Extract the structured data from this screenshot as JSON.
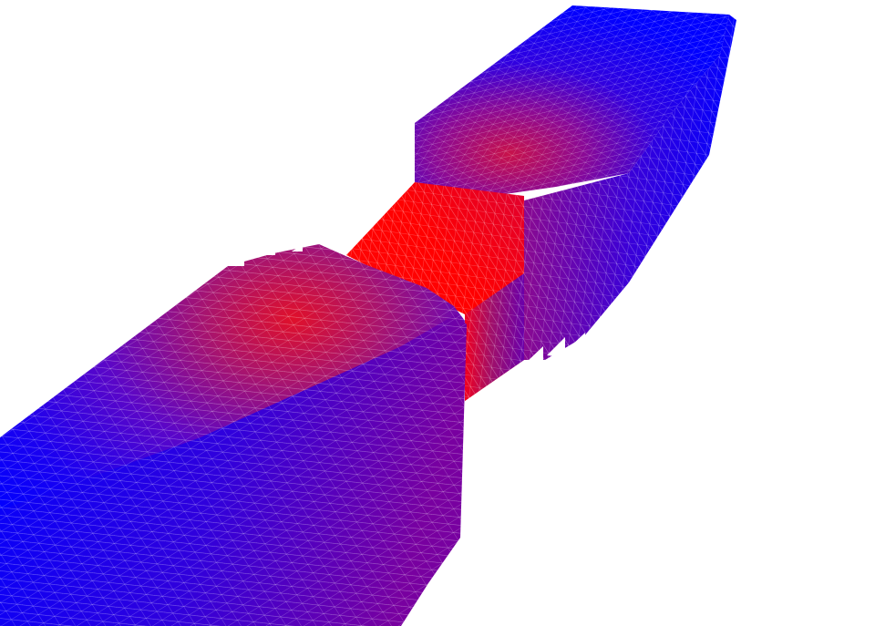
{
  "scene": {
    "subject": "3d-mesh-render",
    "background_color": "#ffffff",
    "mesh_line_color": "#ffffff",
    "colormap": {
      "low": "#0000ff",
      "mid": "#8000a0",
      "high": "#ff0000"
    },
    "parts": [
      {
        "name": "front-block",
        "max_value": 0.55
      },
      {
        "name": "neck",
        "max_value": 1.0
      },
      {
        "name": "back-block",
        "max_value": 0.55
      }
    ]
  }
}
